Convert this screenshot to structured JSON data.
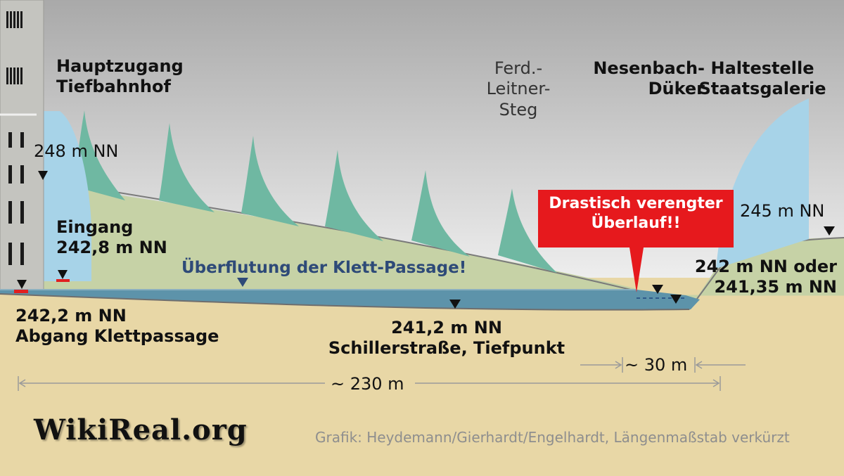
{
  "labels": {
    "hauptzugang": "Hauptzugang\nTiefbahnhof",
    "level_248": "248 m NN",
    "eingang": "Eingang\n242,8 m NN",
    "abgang": "242,2 m NN\nAbgang Klettpassage",
    "ueberflutung": "Überflutung der Klett-Passage!",
    "ferd_steg": "Ferd.-\nLeitner-\nSteg",
    "nesenbach": "Nesenbach-\nDüker",
    "haltestelle": "Haltestelle\nStaatsgalerie",
    "level_245": "245 m NN",
    "level_242_oder": "242 m NN oder\n241,35 m NN",
    "schillerstrasse": "241,2 m NN\nSchillerstraße, Tiefpunkt",
    "callout": "Drastisch verengter\nÜberlauf!!",
    "dist_30": "~ 30 m",
    "dist_230": "~ 230 m",
    "logo": "WikiReal.org",
    "credit": "Grafik: Heydemann/Gierhardt/Engelhardt, Längenmaßstab verkürzt"
  },
  "colors": {
    "sky_top": "#a9a9a9",
    "sky_bottom": "#f2f2f2",
    "ground": "#e8d7a6",
    "fill_slope": "#c6d2a6",
    "water": "#5d93aa",
    "water_surface": "#8bb0c0",
    "teal_shape": "#6fb8a2",
    "light_blue": "#a7d3e8",
    "building": "#c4c4bf",
    "callout_red": "#e6191d",
    "text_blue": "#2e4a78",
    "marker_red": "#e02020"
  },
  "icons": [
    "level-marker-triangle-icon",
    "entrance-marker-icon",
    "dimension-arrow-icon"
  ]
}
